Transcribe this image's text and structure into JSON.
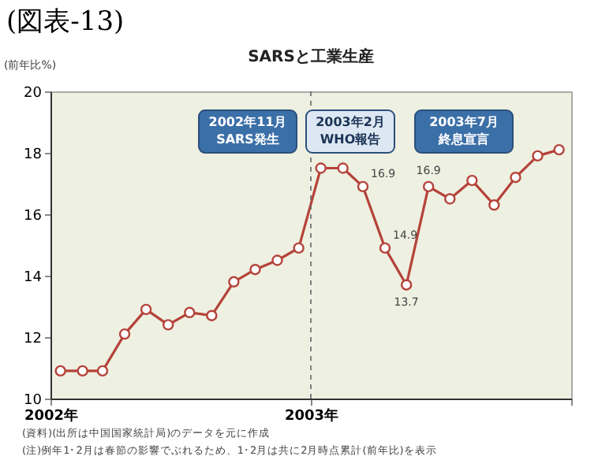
{
  "chart_data": {
    "type": "line",
    "title": "(図表-13)",
    "subtitle": "SARSと工業生産",
    "ylabel": "(前年比%)",
    "x": [
      "2002-01-15",
      "2002-02-15",
      "2002-03-15",
      "2002-04-15",
      "2002-05-15",
      "2002-06-15",
      "2002-07-15",
      "2002-08-15",
      "2002-09-15",
      "2002-10-15",
      "2002-11-15",
      "2002-12-15",
      "2003-01-15",
      "2003-02-15",
      "2003-03-15",
      "2003-04-15",
      "2003-05-15",
      "2003-06-15",
      "2003-07-15",
      "2003-08-15",
      "2003-09-15",
      "2003-10-15",
      "2003-11-15",
      "2003-12-15"
    ],
    "series": [
      {
        "color": "#b5433a",
        "values": [
          10.9,
          10.9,
          10.9,
          12.1,
          12.9,
          12.4,
          12.8,
          12.7,
          13.8,
          14.2,
          14.5,
          14.9,
          17.5,
          17.5,
          16.9,
          14.9,
          13.7,
          16.9,
          16.5,
          17.1,
          16.3,
          17.2,
          17.9,
          18.1
        ],
        "value_labels": [
          null,
          null,
          null,
          null,
          null,
          null,
          null,
          null,
          null,
          null,
          null,
          null,
          null,
          null,
          "16.9",
          "14.9",
          "13.7",
          "16.9",
          null,
          null,
          null,
          null,
          null,
          null
        ]
      }
    ],
    "xlim": [
      "2002",
      "2004"
    ],
    "xticks": [
      {
        "value": "2002",
        "label": "2002年"
      },
      {
        "value": "2003",
        "label": "2003年"
      },
      {
        "value": "2004",
        "label": null
      }
    ],
    "ylim": [
      10,
      20
    ],
    "yticks": [
      10,
      12,
      14,
      16,
      18,
      20
    ],
    "marker": "circle",
    "ref_lines": [
      {
        "axis": "x",
        "value": "2003",
        "line_style": "dashed"
      }
    ],
    "annotations": [
      "2002年11月",
      "SARS発生",
      "2003年2月",
      "WHO報告",
      "2003年7月",
      "終息宣言",
      "(資料)(出所は中国国家統計局)のデータを元に作成",
      "(注)例年1･2月は春節の影響でぶれるため、1･2月は共に2月時点累計(前年比)を表示"
    ]
  }
}
